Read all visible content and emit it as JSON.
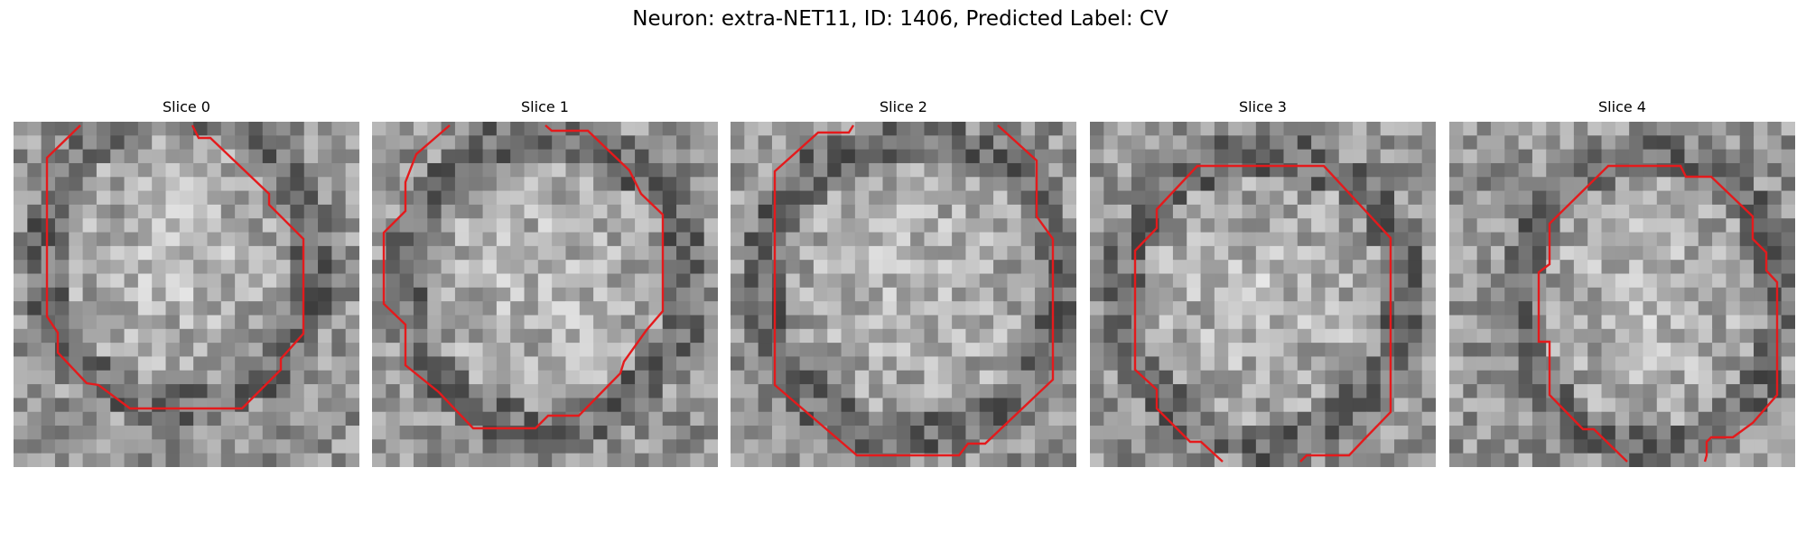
{
  "figure": {
    "title": "Neuron: extra-NET11, ID: 1406, Predicted Label: CV"
  },
  "colors": {
    "contour": "#e41a1c",
    "background": "#ffffff"
  },
  "panels": [
    {
      "label": "Slice 0"
    },
    {
      "label": "Slice 1"
    },
    {
      "label": "Slice 2"
    },
    {
      "label": "Slice 3"
    },
    {
      "label": "Slice 4"
    }
  ]
}
